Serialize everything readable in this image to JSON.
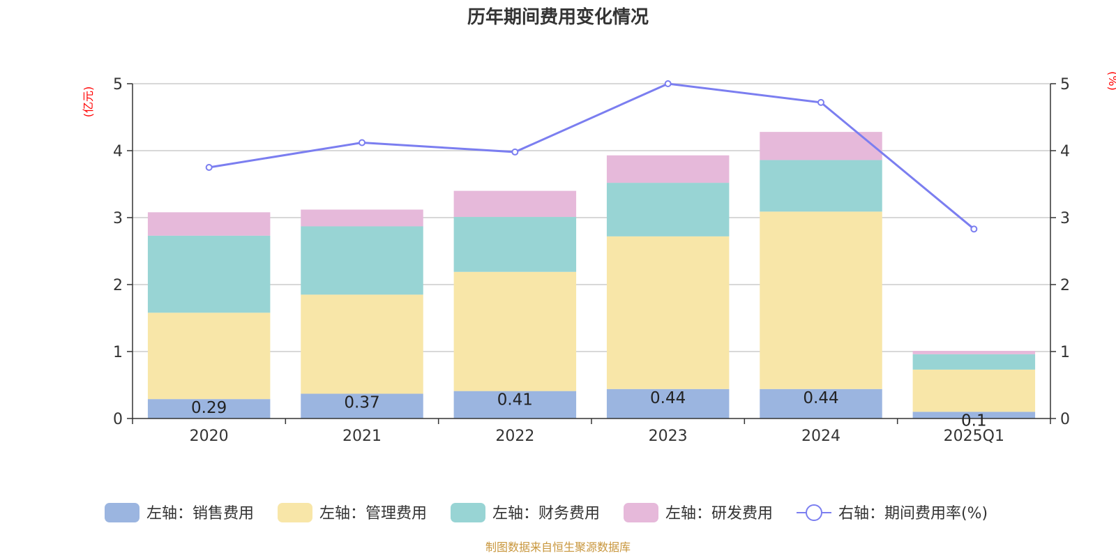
{
  "chart_data": {
    "type": "bar+line",
    "title": "历年期间费用变化情况",
    "categories": [
      "2020",
      "2021",
      "2022",
      "2023",
      "2024",
      "2025Q1"
    ],
    "series": [
      {
        "name": "左轴：销售费用",
        "axis": "left",
        "type": "stacked-bar",
        "color": "#9bb5e0",
        "values": [
          0.29,
          0.37,
          0.41,
          0.44,
          0.44,
          0.1
        ],
        "labels": [
          "0.29",
          "0.37",
          "0.41",
          "0.44",
          "0.44",
          "0.1"
        ]
      },
      {
        "name": "左轴：管理费用",
        "axis": "left",
        "type": "stacked-bar",
        "color": "#f8e6a8",
        "values": [
          1.29,
          1.48,
          1.78,
          2.28,
          2.65,
          0.63
        ]
      },
      {
        "name": "左轴：财务费用",
        "axis": "left",
        "type": "stacked-bar",
        "color": "#98d4d4",
        "values": [
          1.15,
          1.02,
          0.82,
          0.8,
          0.77,
          0.23
        ]
      },
      {
        "name": "左轴：研发费用",
        "axis": "left",
        "type": "stacked-bar",
        "color": "#e6b9da",
        "values": [
          0.35,
          0.25,
          0.39,
          0.41,
          0.42,
          0.05
        ]
      },
      {
        "name": "右轴：期间费用率(%)",
        "axis": "right",
        "type": "line",
        "color": "#7b7ef0",
        "values": [
          3.75,
          4.12,
          3.98,
          5.0,
          4.72,
          2.83
        ]
      }
    ],
    "left_axis": {
      "unit": "(亿元)",
      "ylim": [
        0,
        5
      ],
      "ticks": [
        "0",
        "1",
        "2",
        "3",
        "4",
        "5"
      ]
    },
    "right_axis": {
      "unit": "(%)",
      "ylim": [
        0,
        5
      ],
      "ticks": [
        "0",
        "1",
        "2",
        "3",
        "4",
        "5"
      ]
    },
    "grid": true,
    "legend": "bottom-center"
  },
  "source_note": "制图数据来自恒生聚源数据库"
}
